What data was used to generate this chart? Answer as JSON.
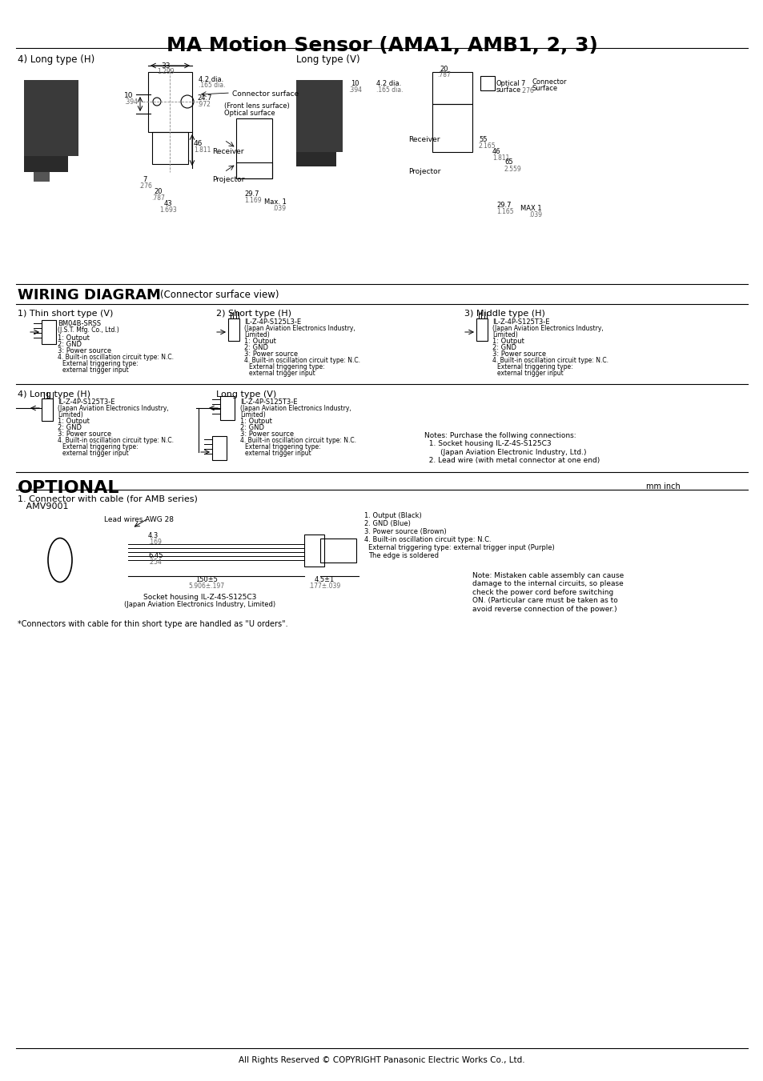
{
  "title": "MA Motion Sensor (AMA1, AMB1, 2, 3)",
  "title_fontsize": 18,
  "bg_color": "#ffffff",
  "text_color": "#000000",
  "line_color": "#000000",
  "footer_text": "All Rights Reserved © COPYRIGHT Panasonic Electric Works Co., Ltd.",
  "section1_title": "4) Long type (H)",
  "section1b_title": "Long type (V)",
  "wiring_title": "WIRING DIAGRAM",
  "wiring_subtitle": "(Connector surface view)",
  "wiring_sub1": "1) Thin short type (V)",
  "wiring_sub2": "2) Short type (H)",
  "wiring_sub3": "3) Middle type (H)",
  "wiring_sub4": "4) Long type (H)",
  "wiring_sub5": "Long type (V)",
  "optional_title": "OPTIONAL",
  "optional_sub1": "1. Connector with cable (for AMB series)",
  "optional_sub2": "   AMV9001",
  "mm_inch": "mm inch",
  "footer_note": "*Connectors with cable for thin short type are handled as \"U orders\".",
  "notes_text": "Notes: Purchase the follwing connections:\n  1. Socket housing IL-Z-4S-S125C3\n       (Japan Aviation Electronic Industry, Ltd.)\n  2. Lead wire (with metal connector at one end)",
  "note_optional": "Note: Mistaken cable assembly can cause\ndamage to the internal circuits, so please\ncheck the power cord before switching\nON. (Particular care must be taken as to\navoid reverse connection of the power.)"
}
